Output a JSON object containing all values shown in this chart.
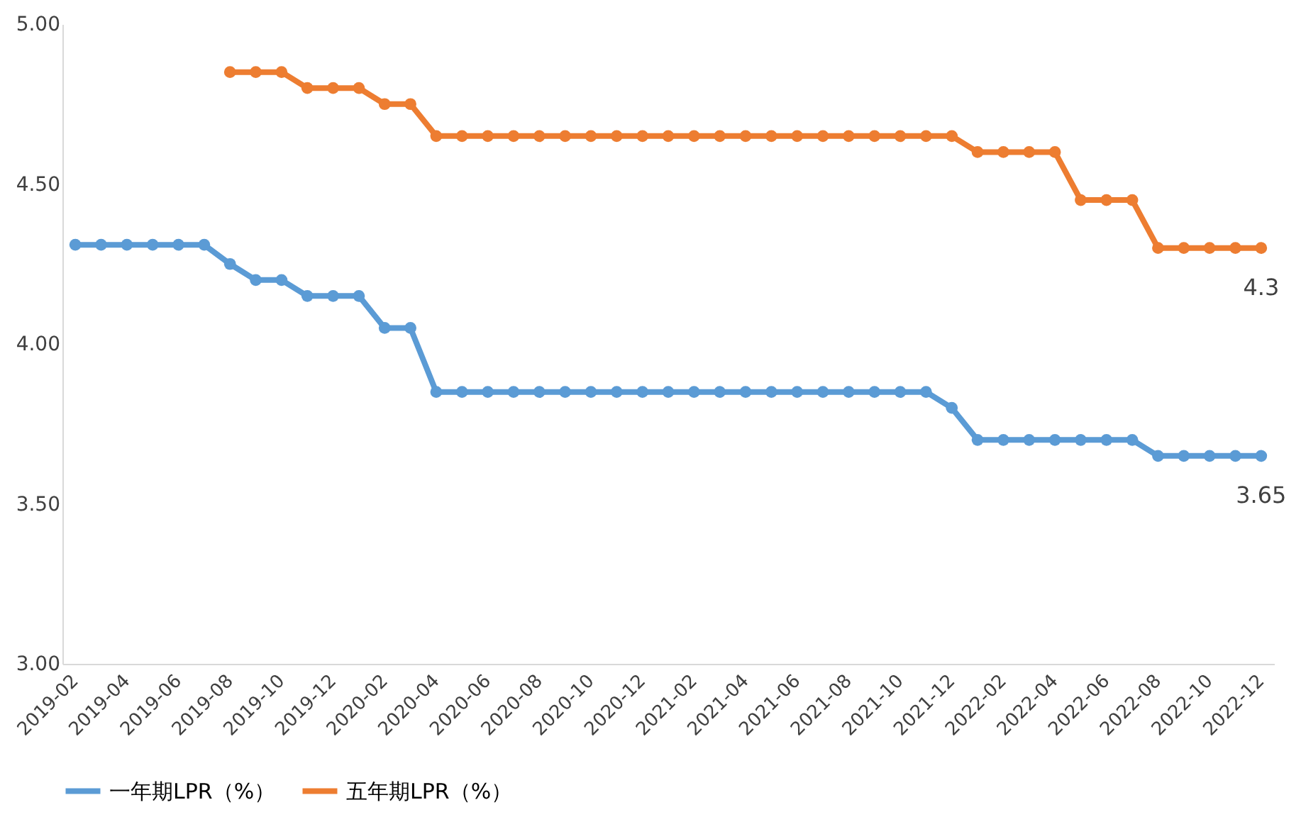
{
  "chart_data": {
    "type": "line",
    "categories": [
      "2019-02",
      null,
      "2019-04",
      null,
      "2019-06",
      null,
      "2019-08",
      null,
      "2019-10",
      null,
      "2019-12",
      null,
      "2020-02",
      null,
      "2020-04",
      null,
      "2020-06",
      null,
      "2020-08",
      null,
      "2020-10",
      null,
      "2020-12",
      null,
      "2021-02",
      null,
      "2021-04",
      null,
      "2021-06",
      null,
      "2021-08",
      null,
      "2021-10",
      null,
      "2021-12",
      null,
      "2022-02",
      null,
      "2022-04",
      null,
      "2022-06",
      null,
      "2022-08",
      null,
      "2022-10",
      null,
      "2022-12"
    ],
    "series": [
      {
        "name": "一年期LPR（%）",
        "color": "#5b9bd5",
        "values": [
          4.31,
          4.31,
          4.31,
          4.31,
          4.31,
          4.31,
          4.25,
          4.2,
          4.2,
          4.15,
          4.15,
          4.15,
          4.05,
          4.05,
          3.85,
          3.85,
          3.85,
          3.85,
          3.85,
          3.85,
          3.85,
          3.85,
          3.85,
          3.85,
          3.85,
          3.85,
          3.85,
          3.85,
          3.85,
          3.85,
          3.85,
          3.85,
          3.85,
          3.85,
          3.8,
          3.7,
          3.7,
          3.7,
          3.7,
          3.7,
          3.7,
          3.7,
          3.65,
          3.65,
          3.65,
          3.65,
          3.65
        ],
        "value_labels": [
          null,
          null,
          null,
          null,
          null,
          null,
          null,
          null,
          null,
          null,
          null,
          null,
          null,
          null,
          null,
          null,
          null,
          null,
          null,
          null,
          null,
          null,
          null,
          null,
          null,
          null,
          null,
          null,
          null,
          null,
          null,
          null,
          null,
          null,
          null,
          null,
          null,
          null,
          null,
          null,
          null,
          null,
          null,
          null,
          null,
          null,
          "3.65"
        ]
      },
      {
        "name": "五年期LPR（%）",
        "color": "#ed7d31",
        "values": [
          null,
          null,
          null,
          null,
          null,
          null,
          4.85,
          4.85,
          4.85,
          4.8,
          4.8,
          4.8,
          4.75,
          4.75,
          4.65,
          4.65,
          4.65,
          4.65,
          4.65,
          4.65,
          4.65,
          4.65,
          4.65,
          4.65,
          4.65,
          4.65,
          4.65,
          4.65,
          4.65,
          4.65,
          4.65,
          4.65,
          4.65,
          4.65,
          4.65,
          4.6,
          4.6,
          4.6,
          4.6,
          4.45,
          4.45,
          4.45,
          4.3,
          4.3,
          4.3,
          4.3,
          4.3
        ],
        "value_labels": [
          null,
          null,
          null,
          null,
          null,
          null,
          null,
          null,
          null,
          null,
          null,
          null,
          null,
          null,
          null,
          null,
          null,
          null,
          null,
          null,
          null,
          null,
          null,
          null,
          null,
          null,
          null,
          null,
          null,
          null,
          null,
          null,
          null,
          null,
          null,
          null,
          null,
          null,
          null,
          null,
          null,
          null,
          null,
          null,
          null,
          null,
          "4.3"
        ]
      }
    ],
    "ylim": [
      3,
      5
    ],
    "yticks": [
      {
        "value": 3,
        "label": "3.00"
      },
      {
        "value": 3.5,
        "label": "3.50"
      },
      {
        "value": 4,
        "label": "4.00"
      },
      {
        "value": 4.5,
        "label": "4.50"
      },
      {
        "value": 5,
        "label": "5.00"
      }
    ],
    "grid": false,
    "legend": "bottom",
    "marker": "circle",
    "line_style": "solid"
  }
}
